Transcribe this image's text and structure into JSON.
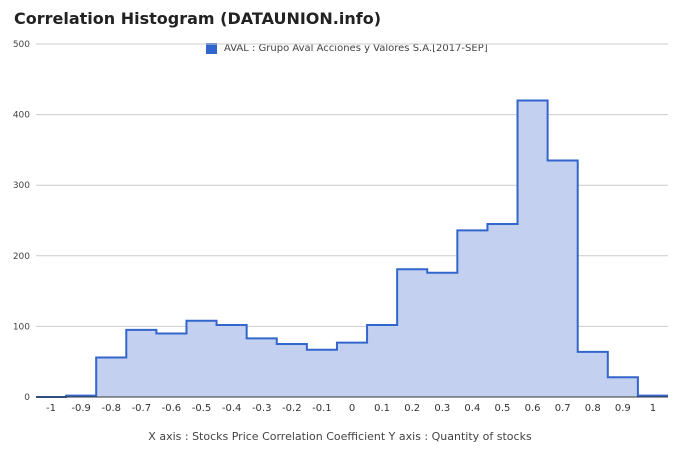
{
  "title": "Correlation Histogram (DATAUNION.info)",
  "legend": {
    "label": "AVAL : Grupo Aval Acciones y Valores S.A.[2017-SEP]"
  },
  "axis_caption": "X axis : Stocks Price Correlation Coefficient  Y axis : Quantity of stocks",
  "colors": {
    "line": "#3366cc",
    "fill": "#c3d0ef",
    "grid": "#cccccc"
  },
  "chart_data": {
    "type": "area",
    "title": "Correlation Histogram (DATAUNION.info)",
    "xlabel": "X axis : Stocks Price Correlation Coefficient",
    "ylabel": "Y axis : Quantity of stocks",
    "xlim": [
      -1.05,
      1.05
    ],
    "ylim": [
      0,
      500
    ],
    "xticks": [
      "-1",
      "-0.9",
      "-0.8",
      "-0.7",
      "-0.6",
      "-0.5",
      "-0.4",
      "-0.3",
      "-0.2",
      "-0.1",
      "0",
      "0.1",
      "0.2",
      "0.3",
      "0.4",
      "0.5",
      "0.6",
      "0.7",
      "0.8",
      "0.9",
      "1"
    ],
    "yticks": [
      "0",
      "100",
      "200",
      "300",
      "400",
      "500"
    ],
    "grid": true,
    "legend_position": "top",
    "series": [
      {
        "name": "AVAL : Grupo Aval Acciones y Valores S.A.[2017-SEP]",
        "x": [
          -1,
          -0.9,
          -0.8,
          -0.7,
          -0.6,
          -0.5,
          -0.4,
          -0.3,
          -0.2,
          -0.1,
          0,
          0.1,
          0.2,
          0.3,
          0.4,
          0.5,
          0.6,
          0.7,
          0.8,
          0.9,
          1
        ],
        "values": [
          0,
          2,
          56,
          95,
          90,
          108,
          102,
          83,
          75,
          67,
          77,
          102,
          181,
          176,
          236,
          245,
          420,
          335,
          64,
          28,
          2
        ]
      }
    ]
  }
}
